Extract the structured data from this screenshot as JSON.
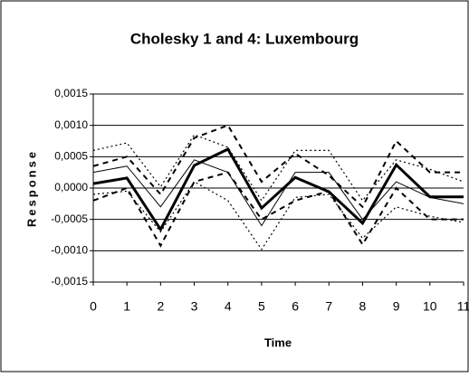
{
  "chart_data": {
    "type": "line",
    "title": "Cholesky 1 and 4: Luxembourg",
    "x_label": "Time",
    "y_label": "Response",
    "x": [
      0,
      1,
      2,
      3,
      4,
      5,
      6,
      7,
      8,
      9,
      10,
      11
    ],
    "xlim": [
      0,
      11
    ],
    "xticks": [
      0,
      1,
      2,
      3,
      4,
      5,
      6,
      7,
      8,
      9,
      10,
      11
    ],
    "ylim": [
      -0.0015,
      0.0015
    ],
    "yticks": [
      {
        "value": -0.0015,
        "label": "-0,0015"
      },
      {
        "value": -0.001,
        "label": "-0,0010"
      },
      {
        "value": -0.0005,
        "label": "-0,0005"
      },
      {
        "value": 0,
        "label": "0,0000"
      },
      {
        "value": 0.0005,
        "label": "0,0005"
      },
      {
        "value": 0.001,
        "label": "0,0010"
      },
      {
        "value": 0.0015,
        "label": "0,0015"
      }
    ],
    "grid": true,
    "series": [
      {
        "color": "#000000",
        "style": "dotted",
        "values": [
          0.0006,
          0.00072,
          2e-05,
          0.00085,
          0.00065,
          -0.0002,
          0.0006,
          0.0006,
          -0.0002,
          0.00045,
          0.0003,
          0.0001
        ]
      },
      {
        "color": "#000000",
        "style": "dotted",
        "values": [
          -0.0001,
          -5e-05,
          -0.0007,
          0.0001,
          -0.0002,
          -0.00098,
          -0.00015,
          -0.0001,
          -0.0008,
          -0.0003,
          -0.00045,
          -0.00055
        ]
      },
      {
        "color": "#000000",
        "style": "dashed",
        "values": [
          0.00035,
          0.0005,
          -0.0001,
          0.0008,
          0.001,
          0.0001,
          0.00055,
          0.0002,
          -0.0003,
          0.00075,
          0.00025,
          0.00025
        ]
      },
      {
        "color": "#000000",
        "style": "dashed",
        "values": [
          -0.0002,
          0.0,
          -0.00092,
          0.0001,
          0.00025,
          -0.0005,
          -0.0002,
          -5e-05,
          -0.0009,
          0.0,
          -0.0005,
          -0.0005
        ]
      },
      {
        "color": "#000000",
        "style": "thin",
        "values": [
          0.00025,
          0.00035,
          -0.0003,
          0.00045,
          0.00025,
          -0.0006,
          0.00025,
          0.00025,
          -0.0005,
          0.0001,
          -0.00015,
          -0.00025
        ]
      },
      {
        "color": "#000000",
        "style": "thick",
        "values": [
          7e-05,
          0.00016,
          -0.00066,
          0.00036,
          0.00062,
          -0.00032,
          0.00017,
          -6e-05,
          -0.00056,
          0.00037,
          -0.00014,
          -0.00014
        ]
      }
    ]
  }
}
